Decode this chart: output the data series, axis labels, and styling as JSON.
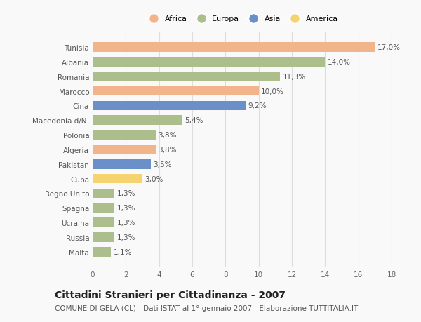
{
  "categories": [
    "Tunisia",
    "Albania",
    "Romania",
    "Marocco",
    "Cina",
    "Macedonia d/N.",
    "Polonia",
    "Algeria",
    "Pakistan",
    "Cuba",
    "Regno Unito",
    "Spagna",
    "Ucraina",
    "Russia",
    "Malta"
  ],
  "values": [
    17.0,
    14.0,
    11.3,
    10.0,
    9.2,
    5.4,
    3.8,
    3.8,
    3.5,
    3.0,
    1.3,
    1.3,
    1.3,
    1.3,
    1.1
  ],
  "continents": [
    "Africa",
    "Europa",
    "Europa",
    "Africa",
    "Asia",
    "Europa",
    "Europa",
    "Africa",
    "Asia",
    "America",
    "Europa",
    "Europa",
    "Europa",
    "Europa",
    "Europa"
  ],
  "colors": {
    "Africa": "#F2B48A",
    "Europa": "#ABBE8C",
    "Asia": "#6B8FC9",
    "America": "#F5D470"
  },
  "legend_order": [
    "Africa",
    "Europa",
    "Asia",
    "America"
  ],
  "xlim": [
    0,
    18
  ],
  "xticks": [
    0,
    2,
    4,
    6,
    8,
    10,
    12,
    14,
    16,
    18
  ],
  "title": "Cittadini Stranieri per Cittadinanza - 2007",
  "subtitle": "COMUNE DI GELA (CL) - Dati ISTAT al 1° gennaio 2007 - Elaborazione TUTTITALIA.IT",
  "bg_color": "#f9f9f9",
  "bar_height": 0.65,
  "grid_color": "#dddddd",
  "title_fontsize": 10,
  "subtitle_fontsize": 7.5,
  "tick_fontsize": 7.5,
  "value_fontsize": 7.5,
  "legend_fontsize": 8
}
